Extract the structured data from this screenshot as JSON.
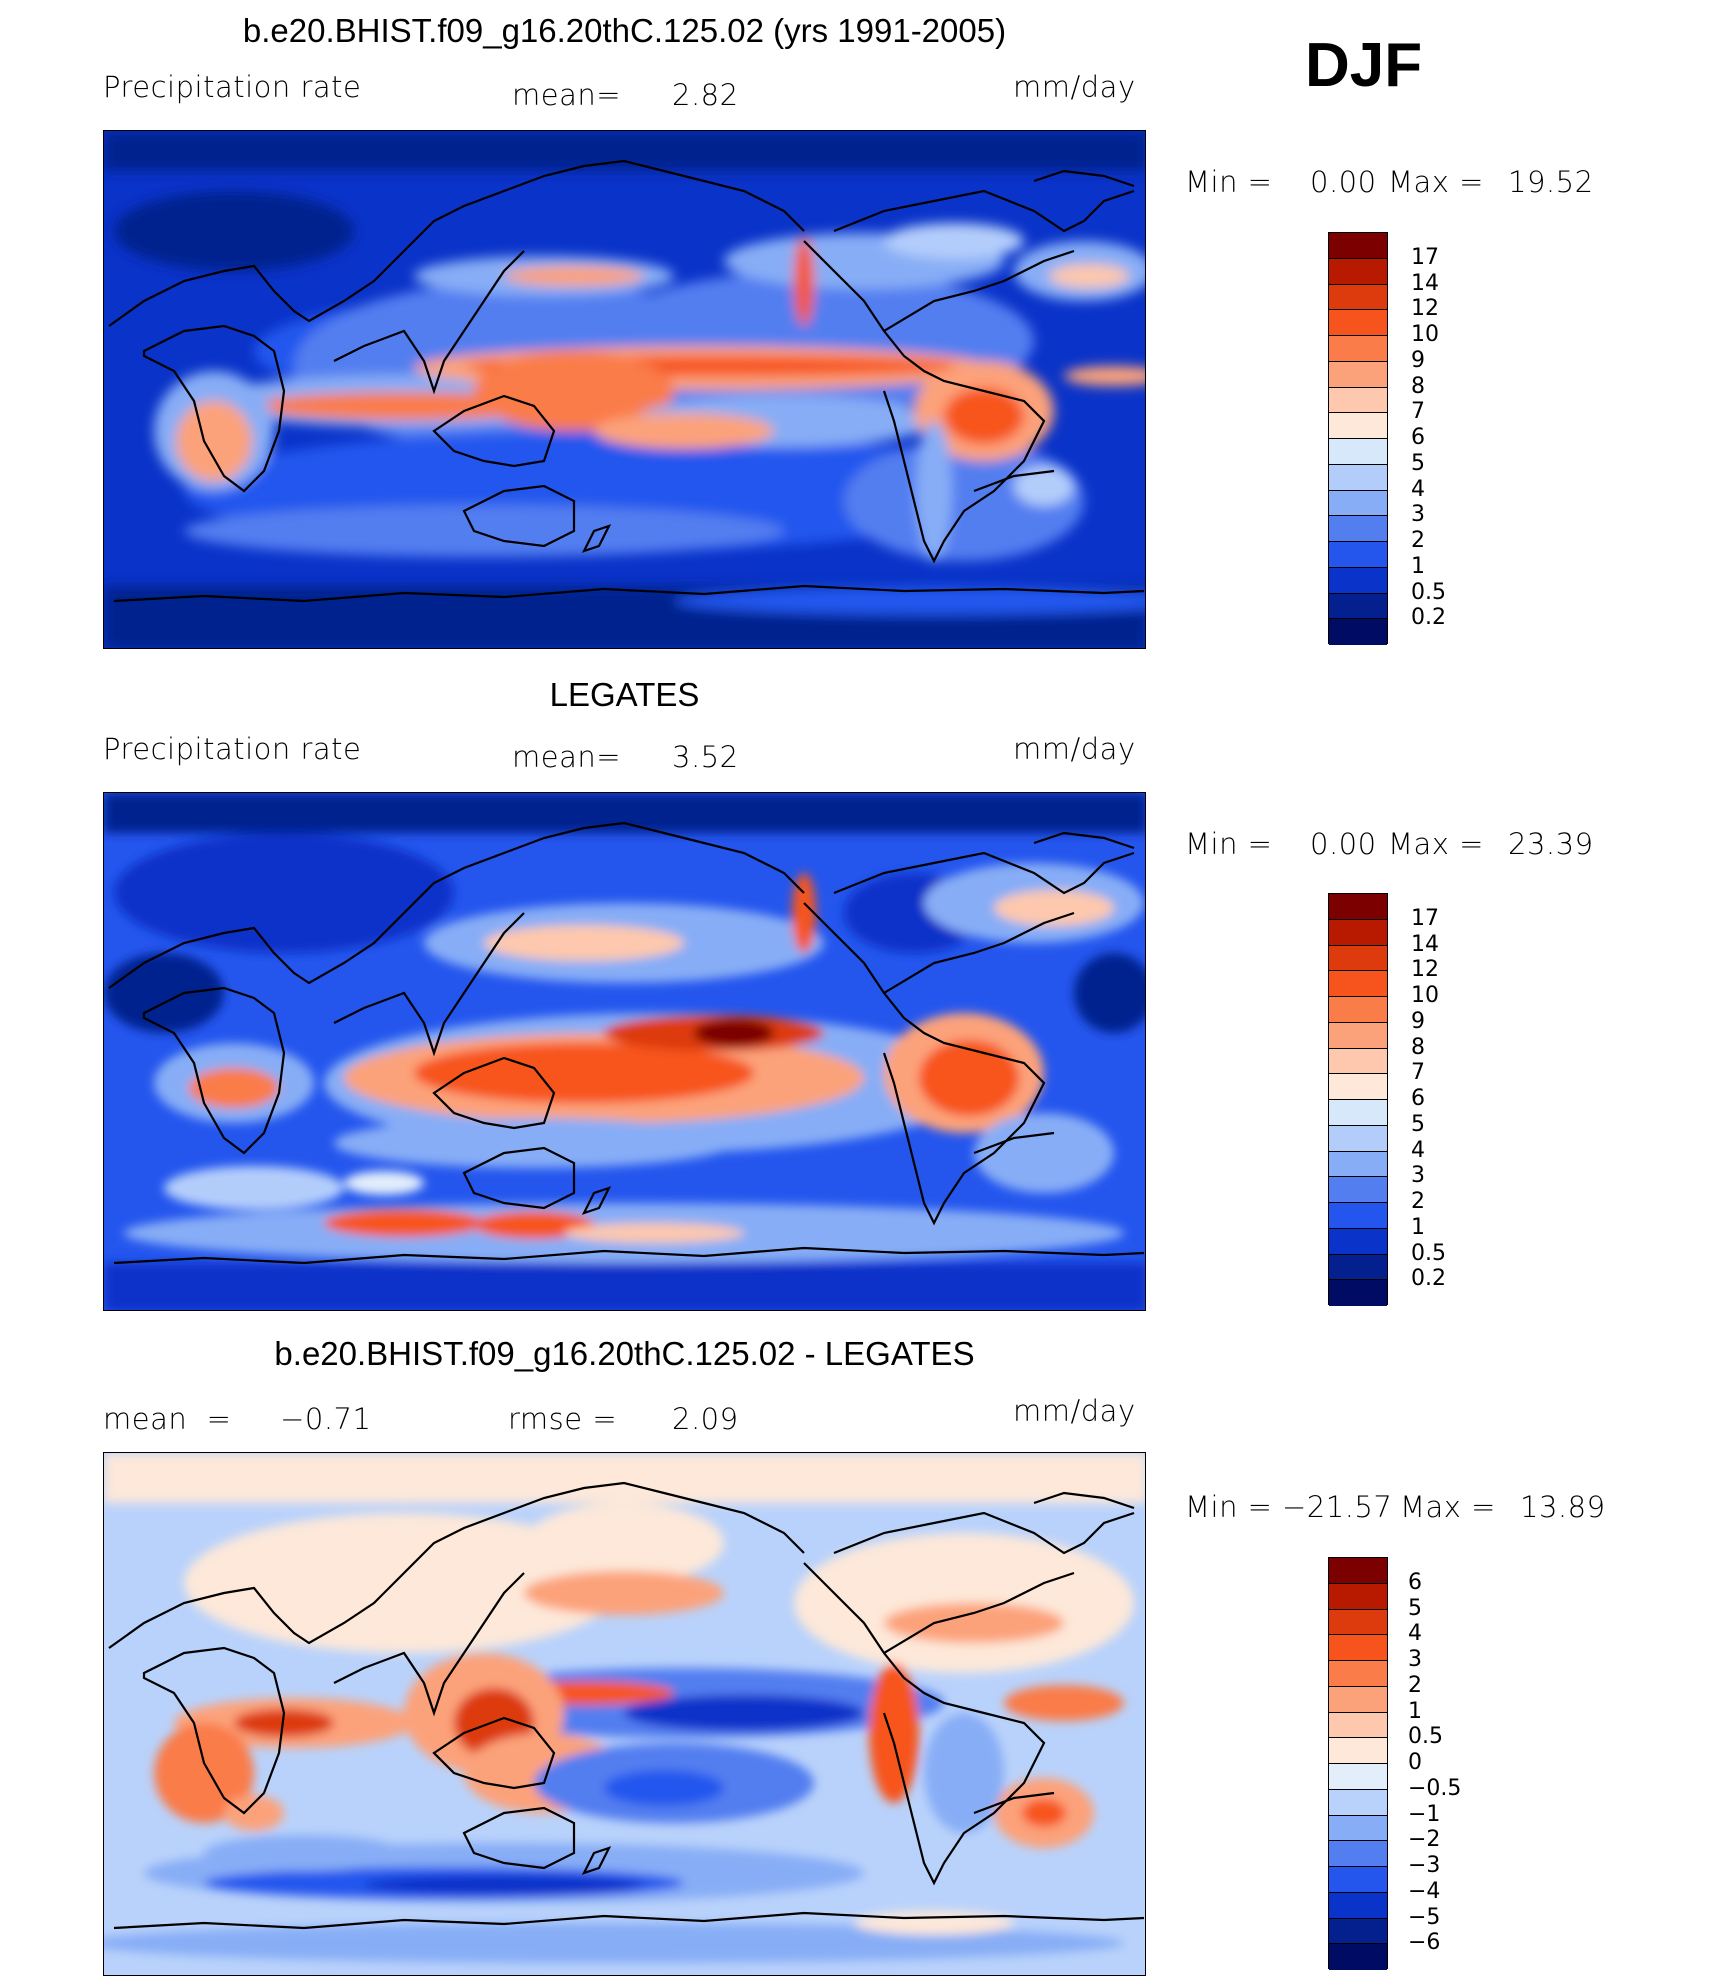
{
  "figure": {
    "season": "DJF"
  },
  "panels": [
    {
      "title": "b.e20.BHIST.f09_g16.20thC.125.02 (yrs 1991-2005)",
      "left_label": "Precipitation  rate",
      "stat_label": "mean=",
      "stat_value": "2.82",
      "units": "mm/day",
      "minmax": {
        "min_label": "Min  =",
        "min": "0.00",
        "max_label": "Max  =",
        "max": "19.52"
      },
      "colorbar": {
        "levels": [
          "17",
          "14",
          "12",
          "10",
          "9",
          "8",
          "7",
          "6",
          "5",
          "4",
          "3",
          "2",
          "1",
          "0.5",
          "0.2"
        ],
        "colors": [
          "#7d0000",
          "#b81a00",
          "#dd3a0e",
          "#f7541d",
          "#fa7c48",
          "#fca27a",
          "#fdc8ad",
          "#fde8d9",
          "#d8e8fb",
          "#b3cdfb",
          "#87adf6",
          "#527ef0",
          "#2456ee",
          "#0a33c9",
          "#04208f",
          "#000b64"
        ]
      }
    },
    {
      "title": "LEGATES",
      "left_label": "Precipitation  rate",
      "stat_label": "mean=",
      "stat_value": "3.52",
      "units": "mm/day",
      "minmax": {
        "min_label": "Min  =",
        "min": "0.00",
        "max_label": "Max  =",
        "max": "23.39"
      },
      "colorbar": {
        "levels": [
          "17",
          "14",
          "12",
          "10",
          "9",
          "8",
          "7",
          "6",
          "5",
          "4",
          "3",
          "2",
          "1",
          "0.5",
          "0.2"
        ],
        "colors": [
          "#7d0000",
          "#b81a00",
          "#dd3a0e",
          "#f7541d",
          "#fa7c48",
          "#fca27a",
          "#fdc8ad",
          "#fde8d9",
          "#d8e8fb",
          "#b3cdfb",
          "#87adf6",
          "#527ef0",
          "#2456ee",
          "#0a33c9",
          "#04208f",
          "#000b64"
        ]
      }
    },
    {
      "title": "b.e20.BHIST.f09_g16.20thC.125.02 - LEGATES",
      "left_label": "mean  =     −0.71",
      "stat_label": "rmse  =",
      "stat_value": "2.09",
      "units": "mm/day",
      "minmax": {
        "min_label": "Min  =",
        "min": "−21.57",
        "max_label": "Max  =",
        "max": "13.89"
      },
      "colorbar": {
        "levels": [
          "6",
          "5",
          "4",
          "3",
          "2",
          "1",
          "0.5",
          "0",
          "−0.5",
          "−1",
          "−2",
          "−3",
          "−4",
          "−5",
          "−6"
        ],
        "colors": [
          "#7d0000",
          "#b81a00",
          "#dd3a0e",
          "#f7541d",
          "#fa7c48",
          "#fca27a",
          "#fdc8ad",
          "#fde8d9",
          "#e3eefb",
          "#b9d2fb",
          "#87adf6",
          "#527ef0",
          "#2456ee",
          "#0a33c9",
          "#04208f",
          "#000b64"
        ]
      }
    }
  ]
}
